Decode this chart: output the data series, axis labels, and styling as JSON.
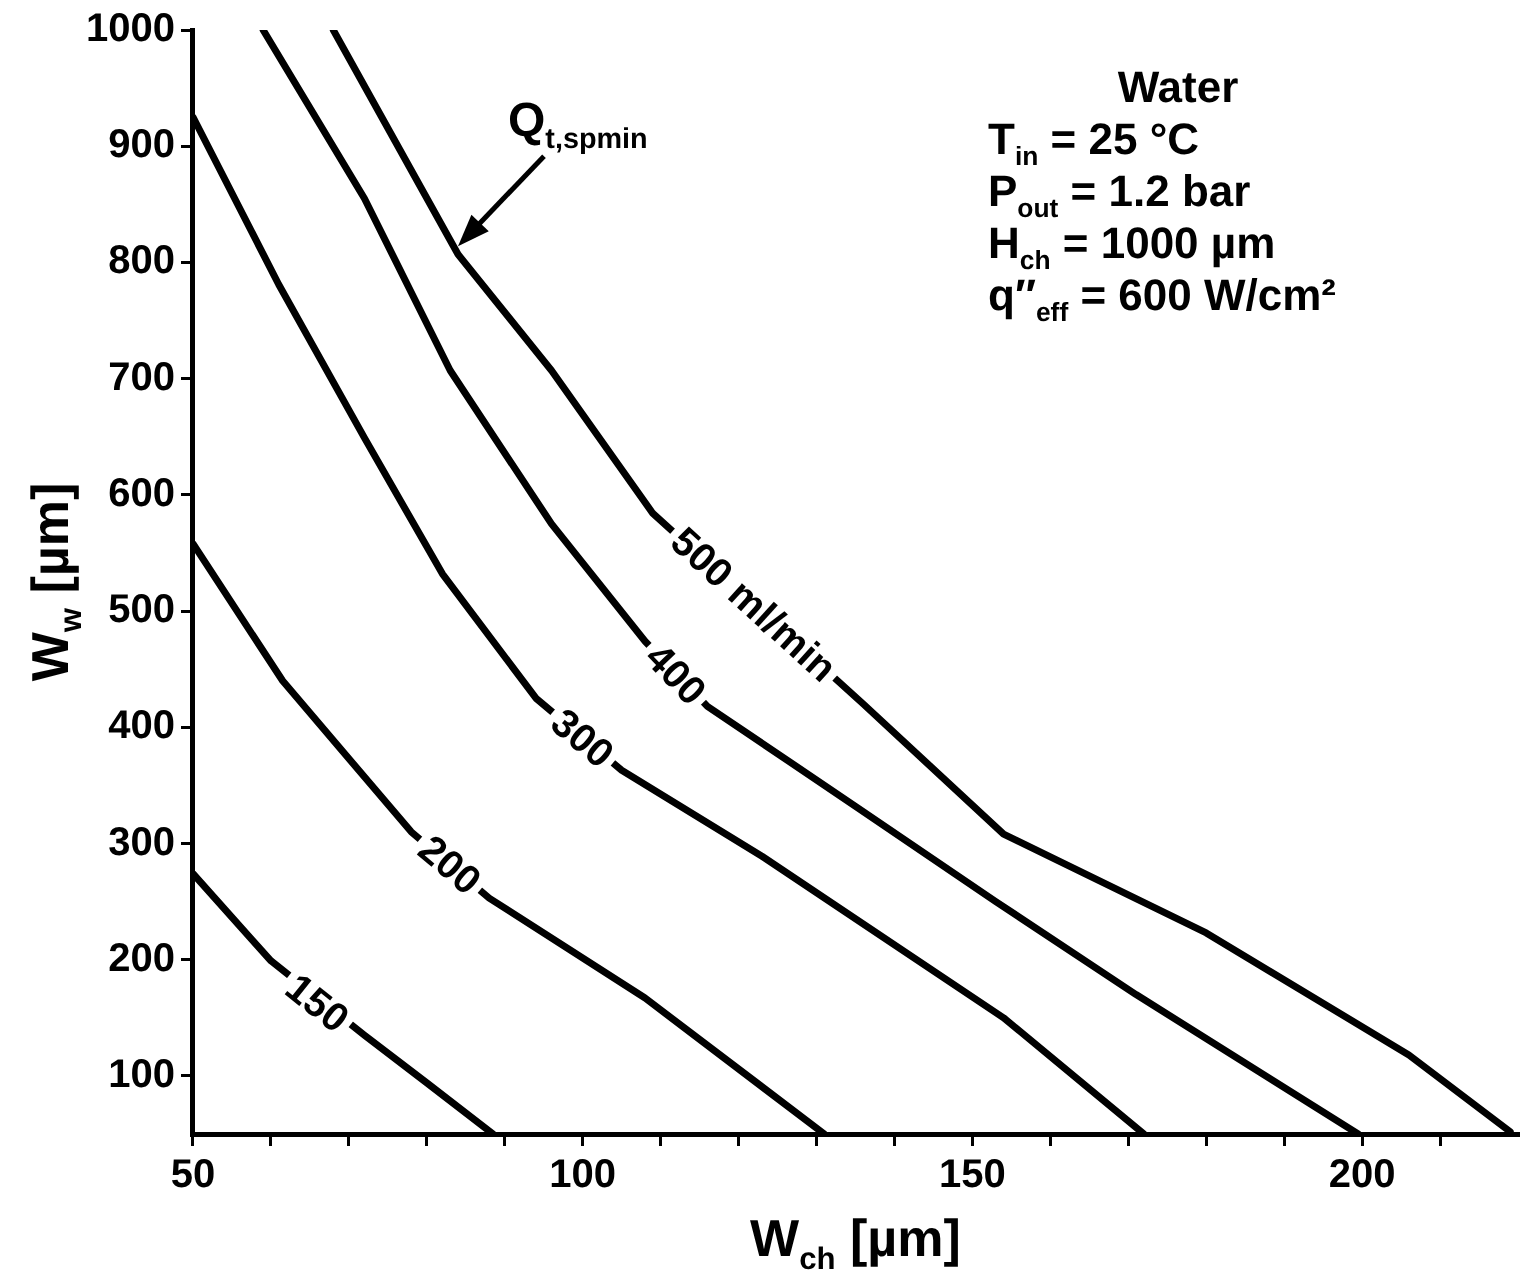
{
  "chart_data": {
    "type": "line",
    "xlabel": "W$_{ch}$ [µm]",
    "ylabel": "W$_{w}$ [µm]",
    "xlim": [
      50,
      220
    ],
    "xticks": [
      50,
      {
        "value": 60,
        "label": null
      },
      {
        "value": 70,
        "label": null
      },
      {
        "value": 80,
        "label": null
      },
      {
        "value": 90,
        "label": null
      },
      100,
      {
        "value": 110,
        "label": null
      },
      {
        "value": 120,
        "label": null
      },
      {
        "value": 130,
        "label": null
      },
      {
        "value": 140,
        "label": null
      },
      150,
      {
        "value": 160,
        "label": null
      },
      {
        "value": 170,
        "label": null
      },
      {
        "value": 180,
        "label": null
      },
      {
        "value": 190,
        "label": null
      },
      200,
      {
        "value": 210,
        "label": null
      }
    ],
    "ylim": [
      50,
      1000
    ],
    "yticks": [
      100,
      200,
      300,
      400,
      500,
      600,
      700,
      800,
      900,
      1000
    ],
    "grid": false,
    "legend": false,
    "marker": "none",
    "line_style": "solid",
    "series": [
      {
        "color": "#000000",
        "x": [
          50,
          60,
          72,
          80,
          88.5
        ],
        "values": [
          274,
          199,
          135,
          94,
          50
        ]
      },
      {
        "color": "#000000",
        "x": [
          50,
          61.5,
          78,
          88,
          108,
          131
        ],
        "values": [
          558,
          440,
          310,
          253,
          167,
          50
        ]
      },
      {
        "color": "#000000",
        "x": [
          50,
          61,
          72,
          82,
          94,
          105,
          123,
          154,
          172
        ],
        "values": [
          925,
          781,
          649,
          532,
          425,
          363,
          289,
          150,
          50
        ]
      },
      {
        "color": "#000000",
        "x": [
          59,
          72,
          83,
          96,
          108,
          116,
          135,
          153,
          171,
          199.5
        ],
        "values": [
          1000,
          855,
          707,
          575,
          474,
          418,
          332,
          250,
          170,
          50
        ]
      },
      {
        "color": "#000000",
        "x": [
          68,
          84,
          96,
          109,
          136,
          154,
          180,
          206,
          219
        ],
        "values": [
          1000,
          807,
          707,
          584,
          420,
          308,
          223,
          118,
          52
        ]
      }
    ],
    "annotations": [
      {
        "text": "150",
        "x": 66,
        "y": 163
      },
      {
        "text": "200",
        "x": 83,
        "y": 282
      },
      {
        "text": "300",
        "x": 100,
        "y": 391
      },
      {
        "text": "400",
        "x": 112,
        "y": 446
      },
      {
        "text": "500 ml/min",
        "x": 122,
        "y": 506
      },
      {
        "text": "Q$_{t,spmin}$",
        "x": 84,
        "y": 814
      },
      "Water",
      "T$_{in}$ = 25 °C",
      "P$_{out}$ = 1.2 bar",
      "H$_{ch}$ = 1000 µm",
      "q″$_{eff}$ = 600 W/cm²"
    ]
  }
}
